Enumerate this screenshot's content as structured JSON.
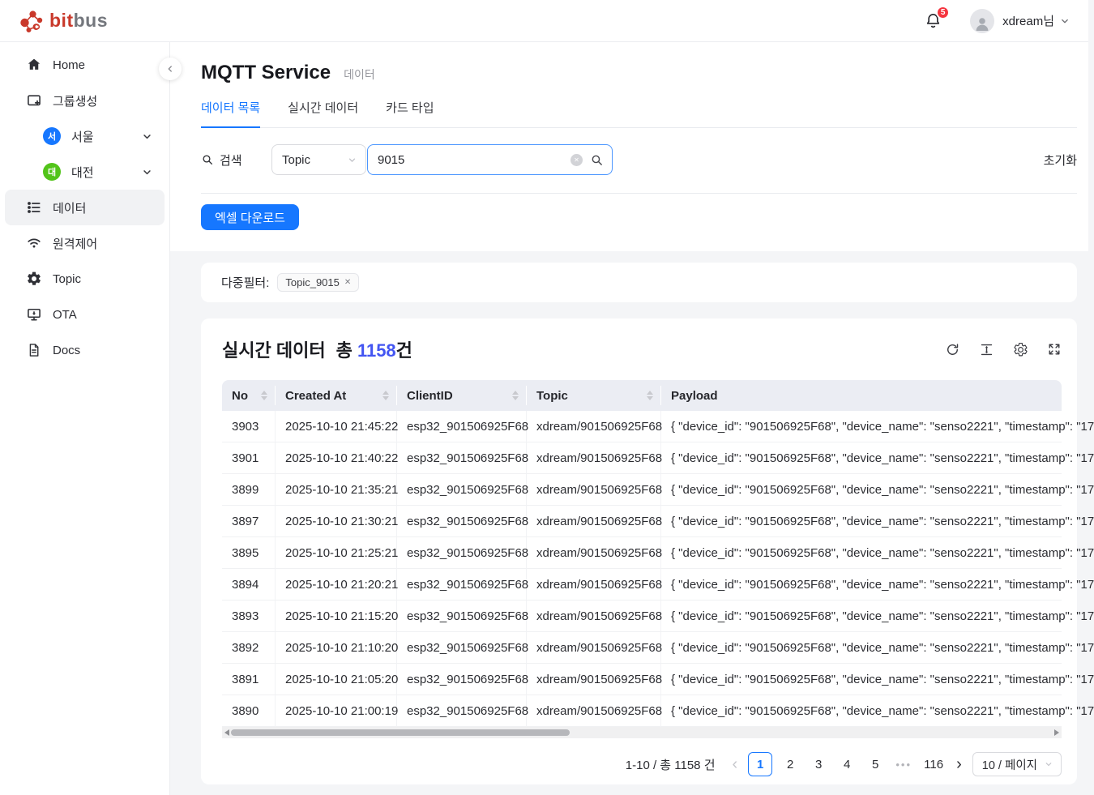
{
  "topbar": {
    "logo_bit": "bit",
    "logo_bus": "bus",
    "notification_count": "5",
    "username": "xdream님",
    "icons": {
      "notifications": "bell-icon",
      "user": "avatar-person-icon",
      "menu": "chevron-down-icon"
    }
  },
  "sidebar": {
    "items": [
      {
        "label": "Home",
        "icon": "home-icon"
      },
      {
        "label": "그룹생성",
        "icon": "create-group-icon"
      },
      {
        "label": "서울",
        "avatar": "서",
        "avatar_color": "#1677ff",
        "icon": "group-avatar",
        "expandable": true
      },
      {
        "label": "대전",
        "avatar": "대",
        "avatar_color": "#52c41a",
        "icon": "group-avatar",
        "expandable": true
      },
      {
        "label": "데이터",
        "icon": "list-icon",
        "active": true
      },
      {
        "label": "원격제어",
        "icon": "wifi-icon"
      },
      {
        "label": "Topic",
        "icon": "gear-icon"
      },
      {
        "label": "OTA",
        "icon": "monitor-download-icon"
      },
      {
        "label": "Docs",
        "icon": "document-icon"
      }
    ]
  },
  "page": {
    "title": "MQTT Service",
    "subtitle": "데이터",
    "tabs": [
      {
        "label": "데이터 목록",
        "active": true
      },
      {
        "label": "실시간 데이터",
        "active": false
      },
      {
        "label": "카드 타입",
        "active": false
      }
    ]
  },
  "search": {
    "label": "검색",
    "field": "Topic",
    "query": "9015",
    "reset_label": "초기화",
    "excel_button": "엑셀 다운로드",
    "icons": {
      "label": "search-icon",
      "clear": "clear-circle-icon",
      "submit": "search-icon"
    }
  },
  "filters": {
    "label": "다중필터:",
    "tags": [
      {
        "label": "Topic_9015",
        "close": "✕"
      }
    ]
  },
  "table": {
    "title": "실시간 데이터",
    "total_prefix": "총",
    "total_count": "1158",
    "total_suffix": "건",
    "toolbar_icons": [
      "refresh-icon",
      "column-height-icon",
      "settings-gear-icon",
      "fullscreen-icon"
    ],
    "columns": [
      "No",
      "Created At",
      "ClientID",
      "Topic",
      "Payload"
    ],
    "sortable_columns": [
      "No",
      "Created At",
      "ClientID",
      "Topic"
    ],
    "rows": [
      {
        "no": "3903",
        "created_at": "2025-10-10 21:45:22",
        "client_id": "esp32_901506925F68",
        "topic": "xdream/901506925F68",
        "payload": "{ \"device_id\": \"901506925F68\", \"device_name\": \"senso2221\", \"timestamp\": \"17"
      },
      {
        "no": "3901",
        "created_at": "2025-10-10 21:40:22",
        "client_id": "esp32_901506925F68",
        "topic": "xdream/901506925F68",
        "payload": "{ \"device_id\": \"901506925F68\", \"device_name\": \"senso2221\", \"timestamp\": \"17"
      },
      {
        "no": "3899",
        "created_at": "2025-10-10 21:35:21",
        "client_id": "esp32_901506925F68",
        "topic": "xdream/901506925F68",
        "payload": "{ \"device_id\": \"901506925F68\", \"device_name\": \"senso2221\", \"timestamp\": \"17"
      },
      {
        "no": "3897",
        "created_at": "2025-10-10 21:30:21",
        "client_id": "esp32_901506925F68",
        "topic": "xdream/901506925F68",
        "payload": "{ \"device_id\": \"901506925F68\", \"device_name\": \"senso2221\", \"timestamp\": \"17"
      },
      {
        "no": "3895",
        "created_at": "2025-10-10 21:25:21",
        "client_id": "esp32_901506925F68",
        "topic": "xdream/901506925F68",
        "payload": "{ \"device_id\": \"901506925F68\", \"device_name\": \"senso2221\", \"timestamp\": \"17"
      },
      {
        "no": "3894",
        "created_at": "2025-10-10 21:20:21",
        "client_id": "esp32_901506925F68",
        "topic": "xdream/901506925F68",
        "payload": "{ \"device_id\": \"901506925F68\", \"device_name\": \"senso2221\", \"timestamp\": \"17"
      },
      {
        "no": "3893",
        "created_at": "2025-10-10 21:15:20",
        "client_id": "esp32_901506925F68",
        "topic": "xdream/901506925F68",
        "payload": "{ \"device_id\": \"901506925F68\", \"device_name\": \"senso2221\", \"timestamp\": \"17"
      },
      {
        "no": "3892",
        "created_at": "2025-10-10 21:10:20",
        "client_id": "esp32_901506925F68",
        "topic": "xdream/901506925F68",
        "payload": "{ \"device_id\": \"901506925F68\", \"device_name\": \"senso2221\", \"timestamp\": \"17"
      },
      {
        "no": "3891",
        "created_at": "2025-10-10 21:05:20",
        "client_id": "esp32_901506925F68",
        "topic": "xdream/901506925F68",
        "payload": "{ \"device_id\": \"901506925F68\", \"device_name\": \"senso2221\", \"timestamp\": \"17"
      },
      {
        "no": "3890",
        "created_at": "2025-10-10 21:00:19",
        "client_id": "esp32_901506925F68",
        "topic": "xdream/901506925F68",
        "payload": "{ \"device_id\": \"901506925F68\", \"device_name\": \"senso2221\", \"timestamp\": \"17"
      }
    ]
  },
  "pagination": {
    "summary": "1-10 / 총 1158 건",
    "prev": "‹",
    "next": "›",
    "pages": [
      "1",
      "2",
      "3",
      "4",
      "5",
      "•••",
      "116"
    ],
    "active_page": "1",
    "ellipsis": "•••",
    "page_size": "10 / 페이지"
  },
  "colors": {
    "primary_blue": "#1677ff",
    "count_accent": "#4355f2",
    "logo_red": "#c9392b",
    "logo_gray": "#74777d",
    "badge_red": "#f5353f",
    "seoul_avatar": "#1677ff",
    "daejeon_avatar": "#52c41a",
    "table_header_bg": "#ebedf3"
  }
}
